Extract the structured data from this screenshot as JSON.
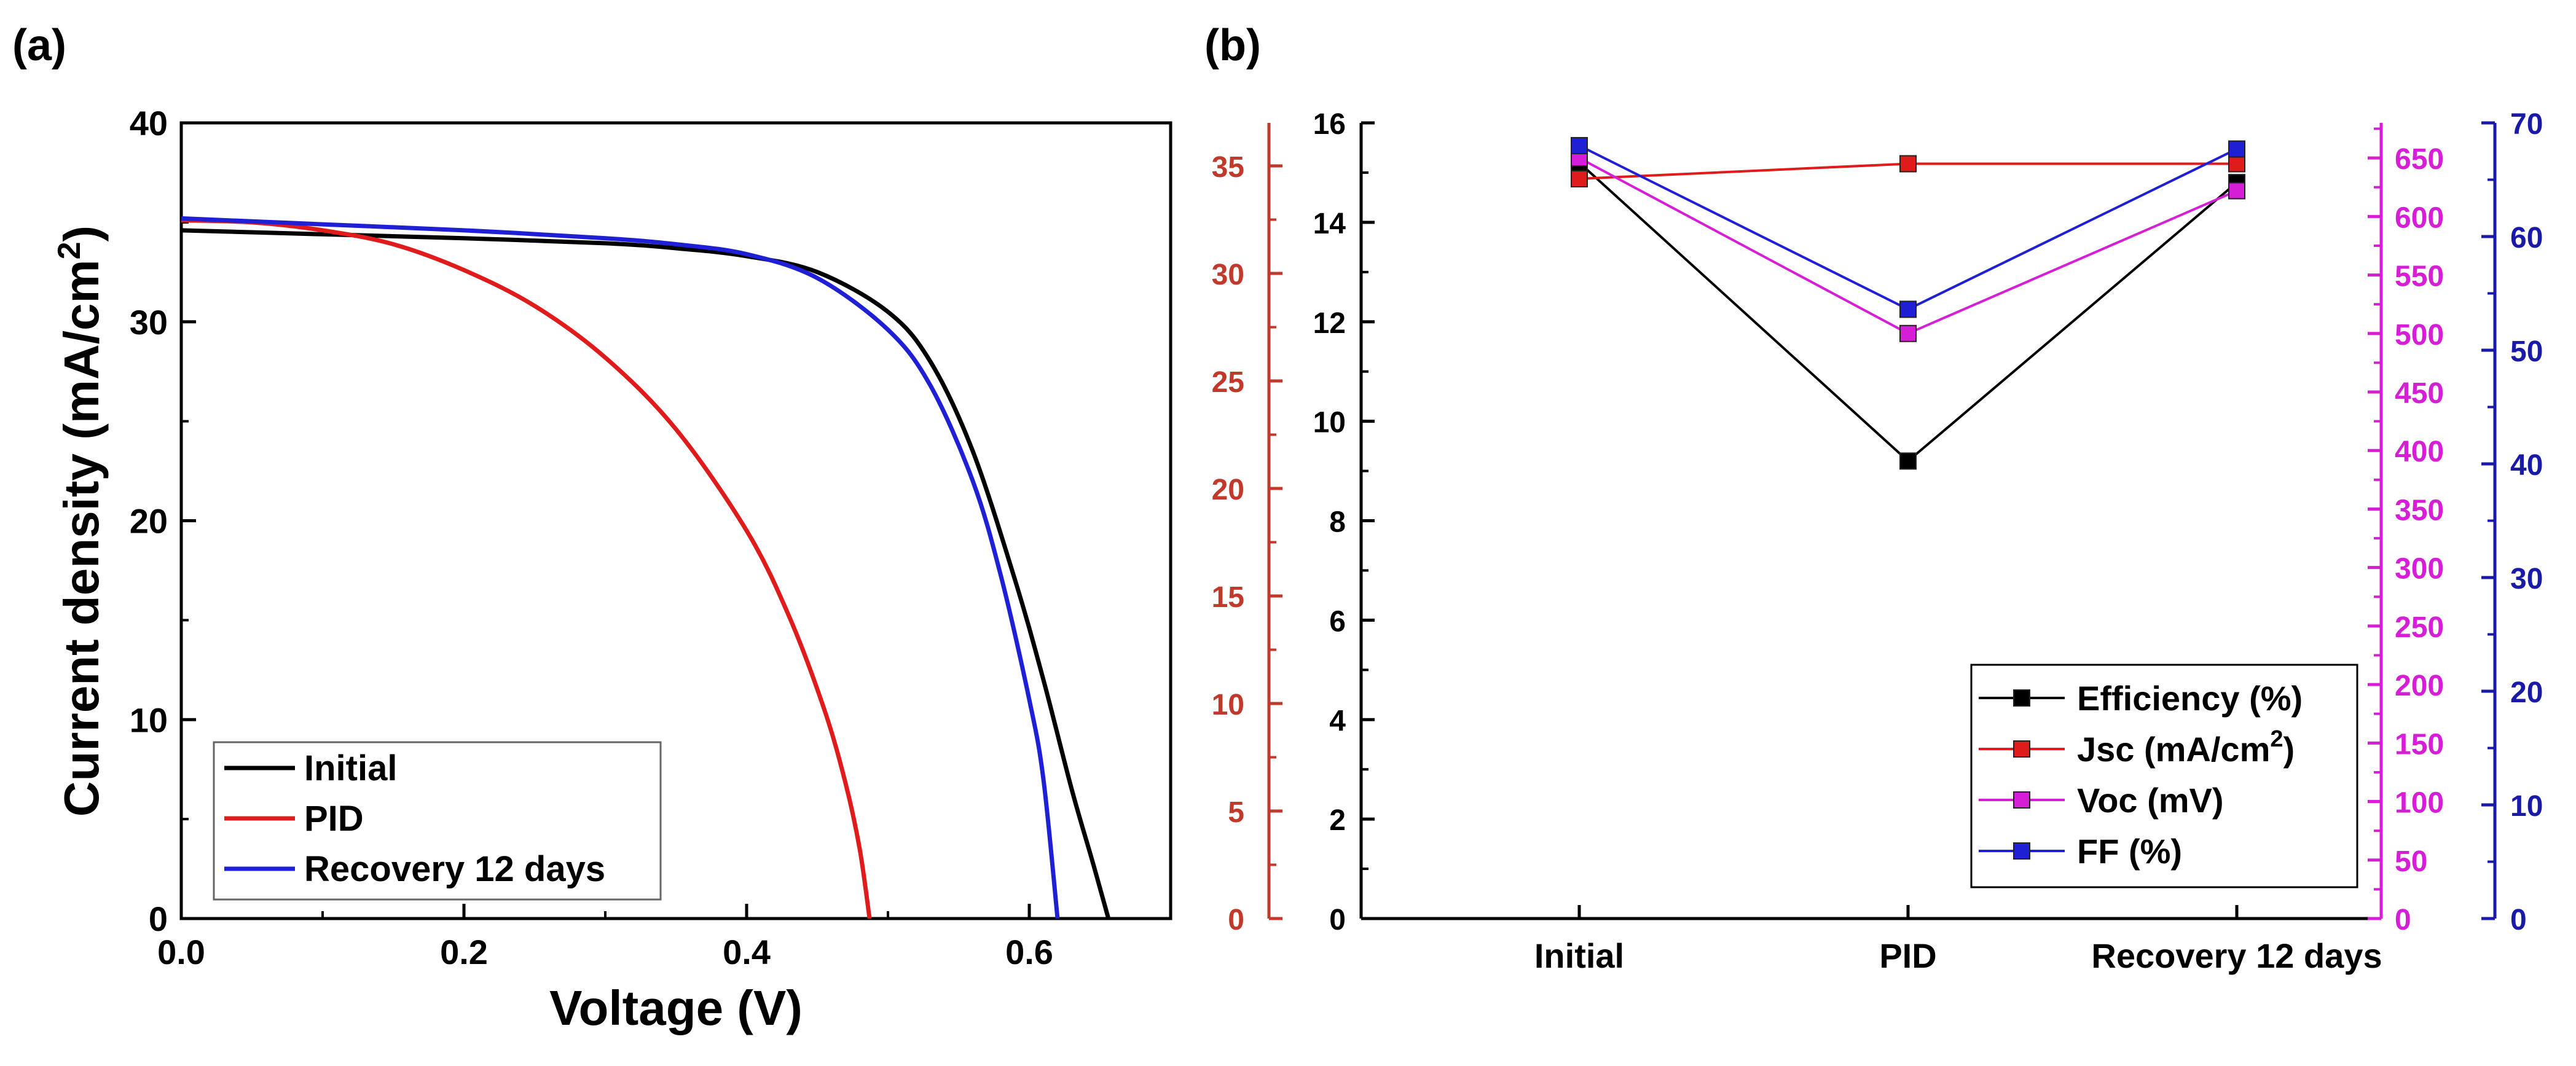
{
  "figure": {
    "panel_a_label": "(a)",
    "panel_b_label": "(b)"
  },
  "colors": {
    "black": "#000000",
    "red": "#e01b1b",
    "dark_red": "#c0392b",
    "magenta": "#d61ed6",
    "blue": "#1f1fd6",
    "dark_blue": "#1a1aa8"
  },
  "chart_data": [
    {
      "type": "line",
      "panel": "(a)",
      "title": "",
      "xlabel": "Voltage (V)",
      "ylabel": "Current density (mA/cm",
      "ylabel_sup": "2",
      "ylabel_close": ")",
      "xlim": [
        0.0,
        0.7
      ],
      "ylim": [
        0,
        40
      ],
      "xticks": [
        "0.0",
        "0.2",
        "0.4",
        "0.6"
      ],
      "yticks": [
        "0",
        "10",
        "20",
        "30",
        "40"
      ],
      "legend_position": "bottom-left",
      "series": [
        {
          "name": "Initial",
          "color": "#000000",
          "points": [
            [
              0.0,
              34.6
            ],
            [
              0.1,
              34.4
            ],
            [
              0.2,
              34.2
            ],
            [
              0.3,
              33.95
            ],
            [
              0.35,
              33.7
            ],
            [
              0.4,
              33.3
            ],
            [
              0.45,
              32.5
            ],
            [
              0.5,
              30.5
            ],
            [
              0.53,
              28.0
            ],
            [
              0.56,
              23.5
            ],
            [
              0.59,
              17.0
            ],
            [
              0.61,
              12.0
            ],
            [
              0.63,
              6.5
            ],
            [
              0.645,
              2.8
            ],
            [
              0.656,
              0.0
            ]
          ]
        },
        {
          "name": "PID",
          "color": "#e01b1b",
          "points": [
            [
              0.0,
              35.1
            ],
            [
              0.05,
              35.0
            ],
            [
              0.1,
              34.6
            ],
            [
              0.15,
              33.9
            ],
            [
              0.2,
              32.6
            ],
            [
              0.25,
              30.8
            ],
            [
              0.3,
              28.2
            ],
            [
              0.35,
              24.6
            ],
            [
              0.4,
              19.5
            ],
            [
              0.43,
              15.2
            ],
            [
              0.455,
              10.5
            ],
            [
              0.47,
              6.8
            ],
            [
              0.48,
              3.5
            ],
            [
              0.487,
              0.0
            ]
          ]
        },
        {
          "name": "Recovery 12 days",
          "color": "#1f1fd6",
          "points": [
            [
              0.0,
              35.2
            ],
            [
              0.1,
              34.9
            ],
            [
              0.2,
              34.6
            ],
            [
              0.3,
              34.2
            ],
            [
              0.35,
              33.9
            ],
            [
              0.4,
              33.4
            ],
            [
              0.45,
              32.2
            ],
            [
              0.5,
              29.6
            ],
            [
              0.53,
              26.8
            ],
            [
              0.56,
              22.0
            ],
            [
              0.58,
              17.2
            ],
            [
              0.6,
              11.0
            ],
            [
              0.61,
              7.0
            ],
            [
              0.62,
              0.0
            ]
          ]
        }
      ]
    },
    {
      "type": "line",
      "panel": "(b)",
      "title": "",
      "categories": [
        "Initial",
        "PID",
        "Recovery 12 days"
      ],
      "axes": {
        "efficiency": {
          "range": [
            0,
            16
          ],
          "ticks": [
            "0",
            "2",
            "4",
            "6",
            "8",
            "10",
            "12",
            "14",
            "16"
          ],
          "color": "#000000"
        },
        "jsc": {
          "range": [
            0,
            37
          ],
          "ticks": [
            "0",
            "5",
            "10",
            "15",
            "20",
            "25",
            "30",
            "35"
          ],
          "color": "#c0392b"
        },
        "voc": {
          "range": [
            0,
            680
          ],
          "ticks": [
            "0",
            "50",
            "100",
            "150",
            "200",
            "250",
            "300",
            "350",
            "400",
            "450",
            "500",
            "550",
            "600",
            "650"
          ],
          "color": "#d61ed6"
        },
        "ff": {
          "range": [
            0,
            70
          ],
          "ticks": [
            "0",
            "10",
            "20",
            "30",
            "40",
            "50",
            "60",
            "70"
          ],
          "color": "#1a1aa8"
        }
      },
      "legend_position": "bottom-right",
      "series": [
        {
          "name": "Efficiency (%)",
          "axis": "efficiency",
          "color": "#000000",
          "values": [
            15.2,
            9.2,
            14.8
          ]
        },
        {
          "name": "Jsc (mA/cm",
          "name_sup": "2",
          "name_close": ")",
          "axis": "jsc",
          "color": "#e01b1b",
          "values": [
            34.4,
            35.1,
            35.1
          ]
        },
        {
          "name": "Voc (mV)",
          "axis": "voc",
          "color": "#d61ed6",
          "values": [
            650,
            500,
            622
          ]
        },
        {
          "name": "FF (%)",
          "axis": "ff",
          "color": "#1f1fd6",
          "values": [
            68.0,
            53.6,
            67.7
          ]
        }
      ]
    }
  ]
}
